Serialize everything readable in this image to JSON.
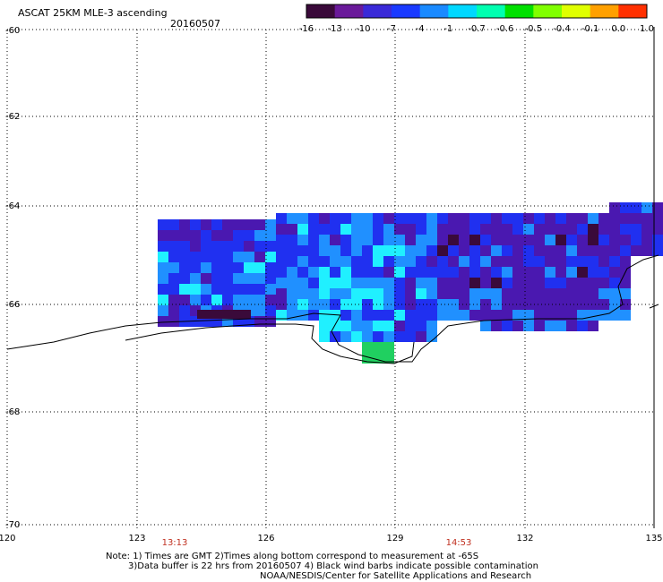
{
  "header": {
    "title": "ASCAT 25KM MLE-3 ascending",
    "date": "20160507"
  },
  "colorbar": {
    "labels": [
      "-16",
      "-13",
      "-10",
      "-7",
      "-4",
      "-1",
      "-0.7",
      "-0.6",
      "-0.5",
      "-0.4",
      "-0.1",
      "0.0",
      "1.0"
    ],
    "colors": [
      "#3a0a3a",
      "#6a1a9a",
      "#3a2ad8",
      "#1a3aff",
      "#1a8aff",
      "#00d8ff",
      "#00ffb0",
      "#00e000",
      "#80ff00",
      "#e0ff00",
      "#ffa000",
      "#ff3000"
    ]
  },
  "axes": {
    "lon_labels": [
      "120",
      "123",
      "126",
      "129",
      "132",
      "135"
    ],
    "lat_labels": [
      "-60",
      "-62",
      "-64",
      "-66",
      "-68",
      "-70"
    ],
    "lon_range": [
      120,
      135
    ],
    "lat_range": [
      -60,
      -70
    ]
  },
  "times": [
    "13:13",
    "14:53"
  ],
  "notes": {
    "line1": "Note: 1) Times are GMT 2)Times along bottom correspond to measurement at -65S",
    "line2": "3)Data buffer is 22 hrs from 20160507 4) Black wind barbs indicate possible contamination",
    "line3": "NOAA/NESDIS/Center for Satellite Applications and Research"
  },
  "swath_colors": {
    "purple": "#4a18b0",
    "blue": "#2030f0",
    "lightblue": "#2090ff",
    "cyan": "#20f0ff",
    "dark": "#3a0a3a",
    "green": "#20d060"
  }
}
